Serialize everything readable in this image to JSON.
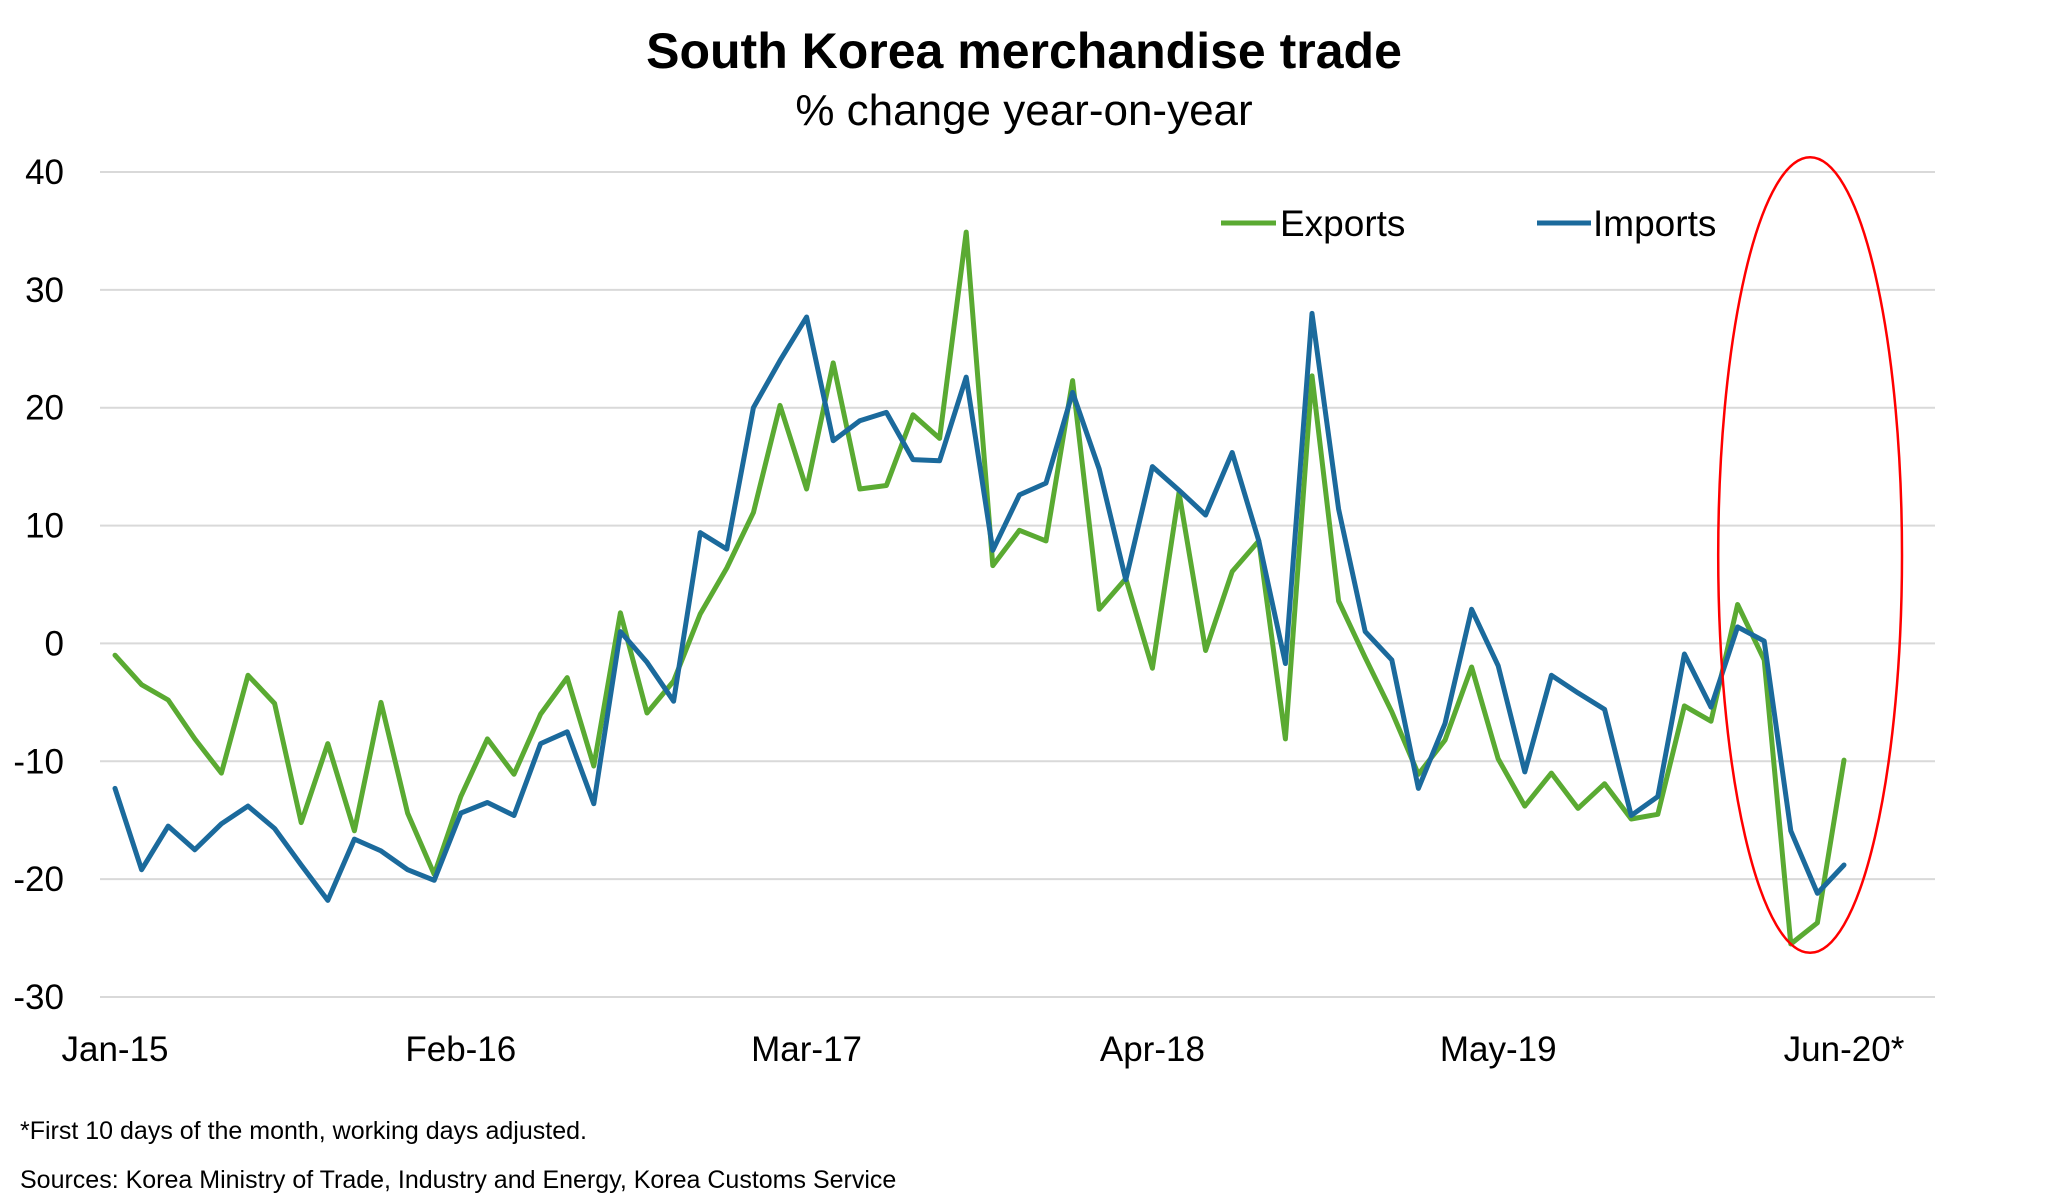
{
  "chart_data": {
    "type": "line",
    "title": "South Korea merchandise trade",
    "subtitle": "% change year-on-year",
    "xlabel": "",
    "ylabel": "",
    "ylim": [
      -30,
      40
    ],
    "yticks": [
      40,
      30,
      20,
      10,
      0,
      -10,
      -20,
      -30
    ],
    "x_tick_labels": [
      "Jan-15",
      "Feb-16",
      "Mar-17",
      "Apr-18",
      "May-19",
      "Jun-20*"
    ],
    "x": [
      "Jan-15",
      "Feb-15",
      "Mar-15",
      "Apr-15",
      "May-15",
      "Jun-15",
      "Jul-15",
      "Aug-15",
      "Sep-15",
      "Oct-15",
      "Nov-15",
      "Dec-15",
      "Jan-16",
      "Feb-16",
      "Mar-16",
      "Apr-16",
      "May-16",
      "Jun-16",
      "Jul-16",
      "Aug-16",
      "Sep-16",
      "Oct-16",
      "Nov-16",
      "Dec-16",
      "Jan-17",
      "Feb-17",
      "Mar-17",
      "Apr-17",
      "May-17",
      "Jun-17",
      "Jul-17",
      "Aug-17",
      "Sep-17",
      "Oct-17",
      "Nov-17",
      "Dec-17",
      "Jan-18",
      "Feb-18",
      "Mar-18",
      "Apr-18",
      "May-18",
      "Jun-18",
      "Jul-18",
      "Aug-18",
      "Sep-18",
      "Oct-18",
      "Nov-18",
      "Dec-18",
      "Jan-19",
      "Feb-19",
      "Mar-19",
      "Apr-19",
      "May-19",
      "Jun-19",
      "Jul-19",
      "Aug-19",
      "Sep-19",
      "Oct-19",
      "Nov-19",
      "Dec-19",
      "Jan-20",
      "Feb-20",
      "Mar-20",
      "Apr-20",
      "May-20",
      "Jun-20*"
    ],
    "series": [
      {
        "name": "Exports",
        "color": "#5aaa32",
        "values": [
          -1,
          -3.5,
          -4.8,
          -8.1,
          -11,
          -2.7,
          -5.1,
          -15.2,
          -8.5,
          -15.9,
          -5,
          -14.4,
          -19.6,
          -13,
          -8.1,
          -11.1,
          -6,
          -2.9,
          -10.4,
          2.6,
          -5.9,
          -3.2,
          2.5,
          6.4,
          11.1,
          20.2,
          13.1,
          23.8,
          13.1,
          13.4,
          19.4,
          17.4,
          34.9,
          6.6,
          9.6,
          8.7,
          22.3,
          2.9,
          5.5,
          -2.1,
          12.8,
          -0.6,
          6.1,
          8.7,
          -8.1,
          22.7,
          3.6,
          -1.2,
          -5.8,
          -11.1,
          -8.2,
          -2,
          -9.8,
          -13.8,
          -11,
          -14,
          -11.9,
          -14.9,
          -14.5,
          -5.3,
          -6.6,
          3.3,
          -1.4,
          -25.5,
          -23.7,
          -9.9
        ]
      },
      {
        "name": "Imports",
        "color": "#1b6a9c",
        "values": [
          -12.3,
          -19.2,
          -15.5,
          -17.5,
          -15.3,
          -13.8,
          -15.7,
          -18.8,
          -21.8,
          -16.6,
          -17.6,
          -19.2,
          -20.1,
          -14.4,
          -13.5,
          -14.6,
          -8.5,
          -7.5,
          -13.6,
          1,
          -1.6,
          -4.9,
          9.4,
          8,
          20,
          24,
          27.7,
          17.2,
          18.9,
          19.6,
          15.6,
          15.5,
          22.6,
          7.9,
          12.6,
          13.6,
          21.3,
          14.8,
          5.4,
          15,
          13,
          10.9,
          16.2,
          8.7,
          -1.7,
          28,
          11.4,
          1,
          -1.4,
          -12.3,
          -6.8,
          2.9,
          -1.9,
          -10.9,
          -2.7,
          -4.2,
          -5.6,
          -14.6,
          -13,
          -0.9,
          -5.4,
          1.4,
          0.2,
          -15.9,
          -21.2,
          -18.8
        ]
      }
    ],
    "annotations": [
      {
        "type": "ellipse",
        "color": "#ff0000",
        "highlight": "Mar-20 to Jun-20*"
      }
    ],
    "grid": true,
    "legend": "top-right"
  },
  "footnotes": {
    "note": "*First 10 days of the month, working days adjusted.",
    "sources": "Sources: Korea Ministry of Trade, Industry and Energy, Korea Customs Service"
  }
}
